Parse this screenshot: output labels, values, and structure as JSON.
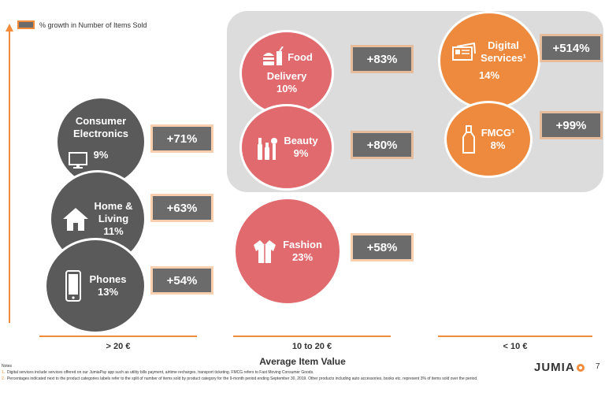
{
  "chart_data": {
    "type": "bubble",
    "legend": "% growth in Number of Items Sold",
    "xlabel": "Average Item Value",
    "categories": [
      "> 20 €",
      "10 to 20 €",
      "< 10 €"
    ],
    "items": [
      {
        "label_lines": [
          "Consumer",
          "Electronics"
        ],
        "share": "9%",
        "growth": "+71%",
        "category": "> 20 €",
        "icon": "tv-icon"
      },
      {
        "label_lines": [
          "Home &",
          "Living"
        ],
        "share": "11%",
        "growth": "+63%",
        "category": "> 20 €",
        "icon": "house-icon"
      },
      {
        "label_lines": [
          "Phones"
        ],
        "share": "13%",
        "growth": "+54%",
        "category": "> 20 €",
        "icon": "phone-icon"
      },
      {
        "label_lines": [
          "Food",
          "Delivery"
        ],
        "share": "10%",
        "growth": "+83%",
        "category": "10 to 20 €",
        "icon": "food-icon"
      },
      {
        "label_lines": [
          "Beauty"
        ],
        "share": "9%",
        "growth": "+80%",
        "category": "10 to 20 €",
        "icon": "cosmetics-icon"
      },
      {
        "label_lines": [
          "Fashion"
        ],
        "share": "23%",
        "growth": "+58%",
        "category": "10 to 20 €",
        "icon": "jacket-icon"
      },
      {
        "label_lines": [
          "Digital",
          "Services¹"
        ],
        "share": "14%",
        "growth": "+514%",
        "category": "< 10 €",
        "icon": "ticket-icon"
      },
      {
        "label_lines": [
          "FMCG¹"
        ],
        "share": "8%",
        "growth": "+99%",
        "category": "< 10 €",
        "icon": "bottle-icon"
      }
    ]
  },
  "colors": {
    "accent": "#f28c3a",
    "dark_bubble": "#5a5a5a",
    "red_bubble": "#e06a6e",
    "orange_bubble": "#ee8a3e",
    "growth_box": "#6b6b6b",
    "highlight": "#dcdcdc"
  },
  "notes": {
    "heading": "Notes",
    "items": [
      {
        "num": "1.",
        "text": "Digital services include services offered on our JumiaPay app such as utility bills payment, airtime recharges, transport ticketing. FMCG refers to Fast Moving Consumer Goods."
      },
      {
        "num": "2.",
        "text": "Percentages indicated next to the product categories labels refer to the split of number of items sold by product category for the 9-month period ending September 30, 2019. Other products including auto accessories, books etc. represent 3% of items sold over the period."
      }
    ]
  },
  "brand": "JUMIA",
  "page_number": "7"
}
